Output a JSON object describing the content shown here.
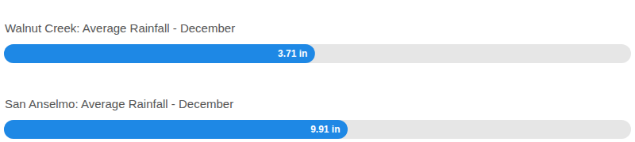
{
  "chart_data": [
    {
      "type": "bar",
      "orientation": "horizontal",
      "title": "Walnut Creek: Average Rainfall - December",
      "categories": [
        null
      ],
      "values": [
        3.71
      ],
      "value_labels": [
        "3.71 in"
      ],
      "data_labels": true,
      "color": "#1e88e5",
      "xlim": [
        0,
        7.48
      ],
      "tick_labels": false
    },
    {
      "type": "bar",
      "orientation": "horizontal",
      "title": "San Anselmo: Average Rainfall - December",
      "categories": [
        null
      ],
      "values": [
        9.91
      ],
      "value_labels": [
        "9.91 in"
      ],
      "data_labels": true,
      "color": "#1e88e5",
      "xlim": [
        0,
        18.08
      ],
      "tick_labels": false
    }
  ]
}
